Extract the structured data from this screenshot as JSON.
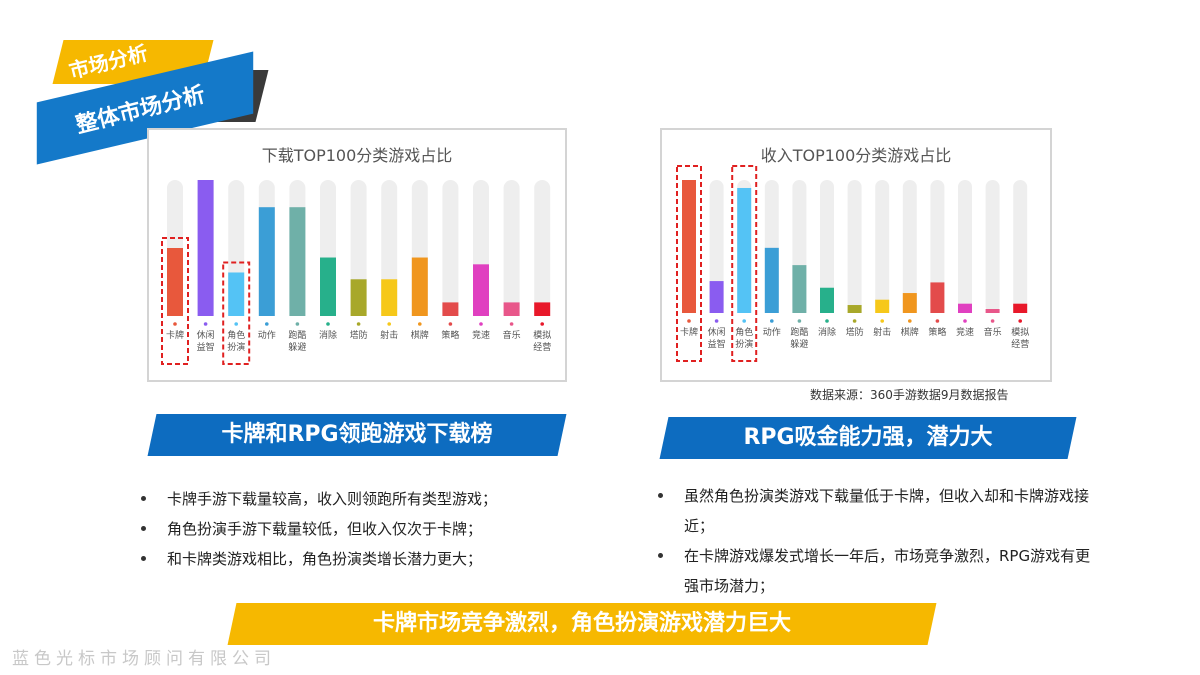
{
  "header": {
    "section_tag": "市场分析",
    "subsection_tag": "整体市场分析"
  },
  "chart_data": [
    {
      "type": "bar",
      "title": "下载TOP100分类游戏占比",
      "categories": [
        "卡牌",
        "休闲益智",
        "角色扮演",
        "动作",
        "跑酷躲避",
        "消除",
        "塔防",
        "射击",
        "棋牌",
        "策略",
        "竞速",
        "音乐",
        "模拟经营"
      ],
      "values": [
        50,
        100,
        32,
        80,
        80,
        43,
        27,
        27,
        43,
        10,
        38,
        10,
        10
      ],
      "colors": [
        "#e8583c",
        "#8a5cf0",
        "#54c3f5",
        "#3b9ed6",
        "#6fb0a8",
        "#27b08b",
        "#a8a82a",
        "#f6c81a",
        "#f0961e",
        "#e34b4b",
        "#e040c0",
        "#e8578a",
        "#e8182a"
      ],
      "ylim": [
        0,
        100
      ],
      "highlighted": [
        "卡牌",
        "角色扮演"
      ]
    },
    {
      "type": "bar",
      "title": "收入TOP100分类游戏占比",
      "categories": [
        "卡牌",
        "休闲益智",
        "角色扮演",
        "动作",
        "跑酷躲避",
        "消除",
        "塔防",
        "射击",
        "棋牌",
        "策略",
        "竞速",
        "音乐",
        "模拟经营"
      ],
      "values": [
        100,
        24,
        94,
        49,
        36,
        19,
        6,
        10,
        15,
        23,
        7,
        3,
        7
      ],
      "colors": [
        "#e8583c",
        "#8a5cf0",
        "#54c3f5",
        "#3b9ed6",
        "#6fb0a8",
        "#27b08b",
        "#a8a82a",
        "#f6c81a",
        "#f0961e",
        "#e34b4b",
        "#e040c0",
        "#e8578a",
        "#e8182a"
      ],
      "ylim": [
        0,
        100
      ],
      "highlighted": [
        "卡牌",
        "角色扮演"
      ]
    }
  ],
  "source_note": "数据来源：360手游数据9月数据报告",
  "left_panel": {
    "heading": "卡牌和RPG领跑游戏下载榜",
    "bullets": [
      "卡牌手游下载量较高，收入则领跑所有类型游戏；",
      "角色扮演手游下载量较低，但收入仅次于卡牌；",
      "和卡牌类游戏相比，角色扮演类增长潜力更大；"
    ]
  },
  "right_panel": {
    "heading": "RPG吸金能力强，潜力大",
    "bullets": [
      "虽然角色扮演类游戏下载量低于卡牌，但收入却和卡牌游戏接近；",
      "在卡牌游戏爆发式增长一年后，市场竞争激烈，RPG游戏有更强市场潜力；"
    ]
  },
  "conclusion": "卡牌市场竞争激烈，角色扮演游戏潜力巨大",
  "footer": "蓝色光标市场顾问有限公司",
  "colors": {
    "accent_blue": "#0d6cc0",
    "accent_yellow": "#f6b800",
    "highlight_red": "#e02020"
  }
}
